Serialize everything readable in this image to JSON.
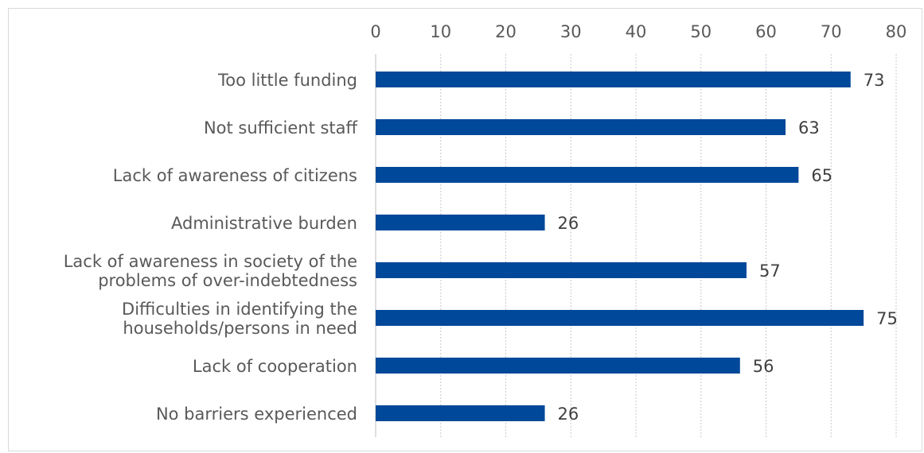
{
  "chart_data": {
    "type": "bar",
    "orientation": "horizontal",
    "title": "",
    "xlabel": "",
    "ylabel": "",
    "categories": [
      "Too little funding",
      "Not sufficient staff",
      "Lack of awareness of citizens",
      "Administrative burden",
      "Lack of awareness in society of the problems of over-indebtedness",
      "Difficulties in identifying the households/persons in need",
      "Lack of cooperation",
      "No barriers experienced"
    ],
    "category_lines": [
      [
        "Too little funding"
      ],
      [
        "Not sufficient staff"
      ],
      [
        "Lack of awareness of citizens"
      ],
      [
        "Administrative burden"
      ],
      [
        "Lack of awareness in society of the",
        "problems of over-indebtedness"
      ],
      [
        "Difficulties in identifying the",
        "households/persons in need"
      ],
      [
        "Lack of cooperation"
      ],
      [
        "No barriers experienced"
      ]
    ],
    "values": [
      73,
      63,
      65,
      26,
      57,
      75,
      56,
      26
    ],
    "xlim": [
      0,
      80
    ],
    "ticks": [
      "0",
      "10",
      "20",
      "30",
      "40",
      "50",
      "60",
      "70",
      "80"
    ],
    "tick_position": "top",
    "grid": true,
    "legend": "none",
    "bar_color": "#00489a"
  }
}
